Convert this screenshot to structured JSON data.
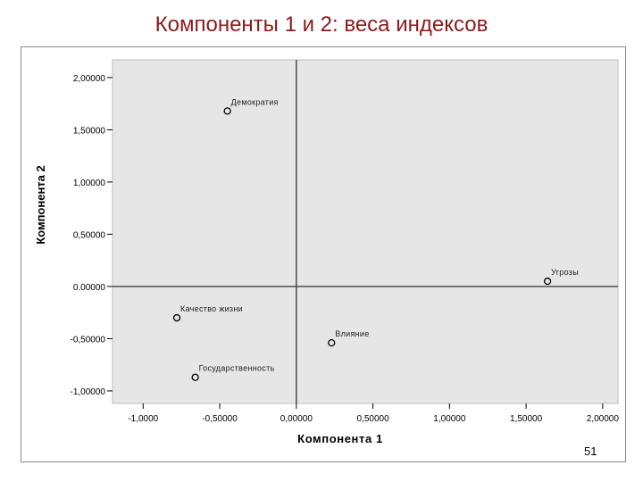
{
  "slide": {
    "title": "Компоненты 1 и 2: веса индексов",
    "page_number": "51"
  },
  "chart_data": {
    "type": "scatter",
    "xlabel": "Компонента 1",
    "ylabel": "Компонента 2",
    "xlim": [
      -1.2,
      2.1
    ],
    "ylim": [
      -1.12,
      2.17
    ],
    "x_ticks": [
      -1.0,
      -0.5,
      0.0,
      0.5,
      1.0,
      1.5,
      2.0
    ],
    "x_tick_labels": [
      "-1,0000",
      "-0,50000",
      "0,00000",
      "0,50000",
      "1,00000",
      "1,50000",
      "2,00000"
    ],
    "y_ticks": [
      2.0,
      1.5,
      1.0,
      0.5,
      0.0,
      -0.5,
      -1.0
    ],
    "y_tick_labels": [
      "2,00000",
      "1,50000",
      "1,00000",
      "0,50000",
      "0.00000",
      "-0,50000",
      "-1,00000"
    ],
    "reference_lines": {
      "x": 0,
      "y": 0
    },
    "grid": false,
    "plot_background": "#e6e6e6",
    "points": [
      {
        "label": "Демократия",
        "x": -0.45,
        "y": 1.68
      },
      {
        "label": "Угрозы",
        "x": 1.64,
        "y": 0.05
      },
      {
        "label": "Качество жизни",
        "x": -0.78,
        "y": -0.3
      },
      {
        "label": "Влияние",
        "x": 0.23,
        "y": -0.54
      },
      {
        "label": "Государственность",
        "x": -0.66,
        "y": -0.87
      }
    ]
  }
}
